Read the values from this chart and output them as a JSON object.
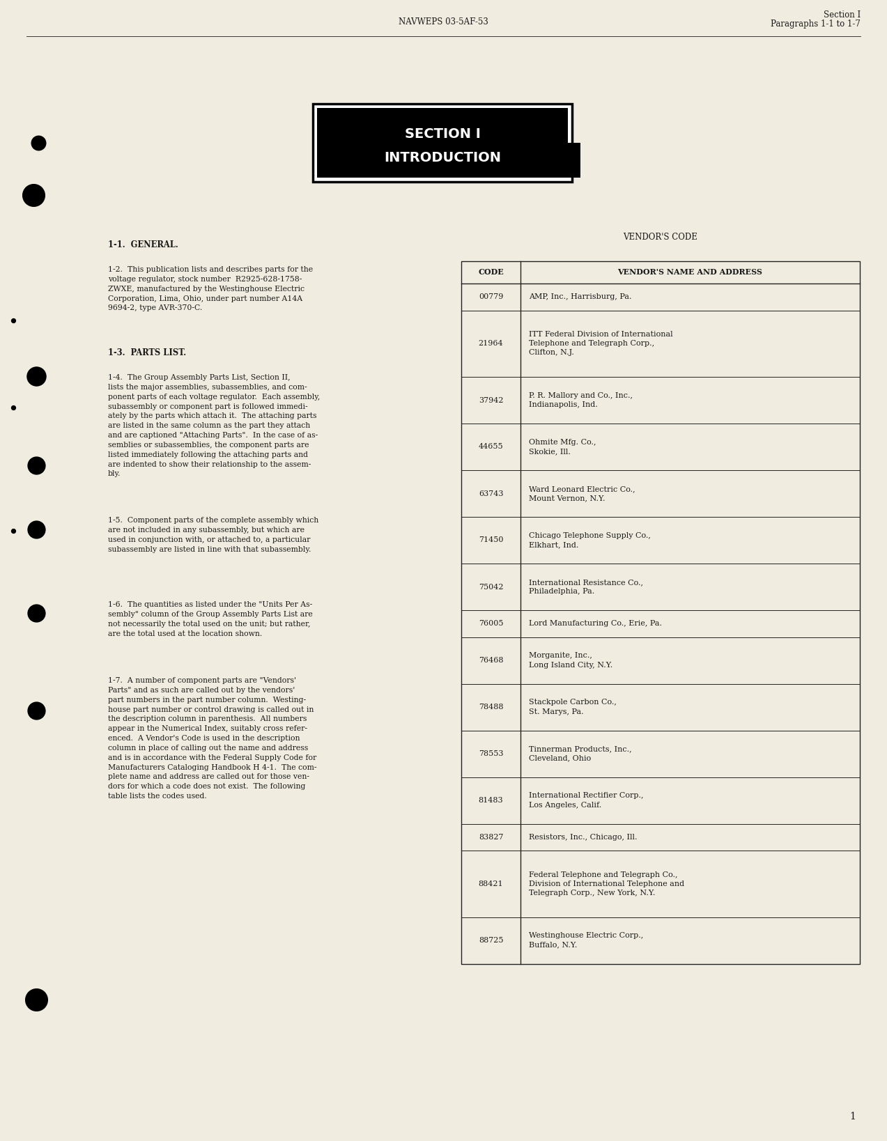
{
  "bg_color": "#f0ede0",
  "text_color": "#1a1a1a",
  "table_border_color": "#222222",
  "header_center_text": "NAVWEPS 03-5AF-53",
  "header_right_line1": "Section I",
  "header_right_line2": "Paragraphs 1-1 to 1-7",
  "section_title_line1": "SECTION I",
  "section_title_line2": "INTRODUCTION",
  "vendor_title": "VENDOR'S CODE",
  "vendor_header": [
    "CODE",
    "VENDOR'S NAME AND ADDRESS"
  ],
  "vendor_rows": [
    [
      "00779",
      "AMP, Inc., Harrisburg, Pa."
    ],
    [
      "21964",
      "ITT Federal Division of International\nTelephone and Telegraph Corp.,\nClifton, N.J."
    ],
    [
      "37942",
      "P. R. Mallory and Co., Inc.,\nIndianapolis, Ind."
    ],
    [
      "44655",
      "Ohmite Mfg. Co.,\nSkokie, Ill."
    ],
    [
      "63743",
      "Ward Leonard Electric Co.,\nMount Vernon, N.Y."
    ],
    [
      "71450",
      "Chicago Telephone Supply Co.,\nElkhart, Ind."
    ],
    [
      "75042",
      "International Resistance Co.,\nPhiladelphia, Pa."
    ],
    [
      "76005",
      "Lord Manufacturing Co., Erie, Pa."
    ],
    [
      "76468",
      "Morganite, Inc.,\nLong Island City, N.Y."
    ],
    [
      "78488",
      "Stackpole Carbon Co.,\nSt. Marys, Pa."
    ],
    [
      "78553",
      "Tinnerman Products, Inc.,\nCleveland, Ohio"
    ],
    [
      "81483",
      "International Rectifier Corp.,\nLos Angeles, Calif."
    ],
    [
      "83827",
      "Resistors, Inc., Chicago, Ill."
    ],
    [
      "88421",
      "Federal Telephone and Telegraph Co.,\nDivision of International Telephone and\nTelegraph Corp., New York, N.Y."
    ],
    [
      "88725",
      "Westinghouse Electric Corp.,\nBuffalo, N.Y."
    ]
  ],
  "page_number": "1",
  "left_paragraphs": [
    {
      "tag": "1-1.",
      "head": "GENERAL.",
      "body": "",
      "bold_head": true
    },
    {
      "tag": "1-2.",
      "head": "",
      "body": "This publication lists and describes parts for the\nvoltage regulator, stock number  R2925-628-1758-\nZWXE, manufactured by the Westinghouse Electric\nCorporation, Lima, Ohio, under part number A14A\n9694-2, type AVR-370-C.",
      "bold_head": false
    },
    {
      "tag": "1-3.",
      "head": "PARTS LIST.",
      "body": "",
      "bold_head": true
    },
    {
      "tag": "1-4.",
      "head": "",
      "body": "The Group Assembly Parts List, Section II,\nlists the major assemblies, subassemblies, and com-\nponent parts of each voltage regulator.  Each assembly,\nsubassembly or component part is followed immedi-\nately by the parts which attach it.  The attaching parts\nare listed in the same column as the part they attach\nand are captioned \"Attaching Parts\".  In the case of as-\nsemblies or subassemblies, the component parts are\nlisted immediately following the attaching parts and\nare indented to show their relationship to the assem-\nbly.",
      "bold_head": false
    },
    {
      "tag": "1-5.",
      "head": "",
      "body": "Component parts of the complete assembly which\nare not included in any subassembly, but which are\nused in conjunction with, or attached to, a particular\nsubassembly are listed in line with that subassembly.",
      "bold_head": false
    },
    {
      "tag": "1-6.",
      "head": "",
      "body": "The quantities as listed under the \"Units Per As-\nsembly\" column of the Group Assembly Parts List are\nnot necessarily the total used on the unit; but rather,\nare the total used at the location shown.",
      "bold_head": false
    },
    {
      "tag": "1-7.",
      "head": "",
      "body": "A number of component parts are \"Vendors'\nParts\" and as such are called out by the vendors'\npart numbers in the part number column.  Westing-\nhouse part number or control drawing is called out in\nthe description column in parenthesis.  All numbers\nappear in the Numerical Index, suitably cross refer-\nenced.  A Vendor's Code is used in the description\ncolumn in place of calling out the name and address\nand is in accordance with the Federal Supply Code for\nManufacturers Cataloging Handbook H 4-1.  The com-\nplete name and address are called out for those ven-\ndors for which a code does not exist.  The following\ntable lists the codes used.",
      "bold_head": false
    }
  ]
}
